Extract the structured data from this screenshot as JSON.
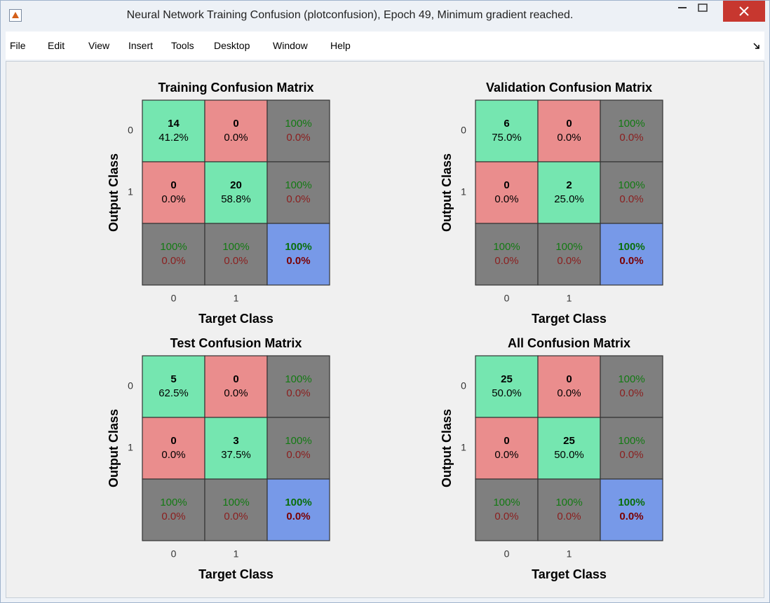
{
  "window": {
    "title": "Neural Network Training Confusion (plotconfusion), Epoch 49, Minimum gradient reached."
  },
  "menu": [
    "File",
    "Edit",
    "View",
    "Insert",
    "Tools",
    "Desktop",
    "Window",
    "Help"
  ],
  "matrices": [
    {
      "title": "Training Confusion Matrix",
      "xlabel": "Target Class",
      "ylabel": "Output Class",
      "classes": [
        "0",
        "1"
      ],
      "cells": [
        [
          {
            "top": "14",
            "bottom": "41.2%"
          },
          {
            "top": "0",
            "bottom": "0.0%"
          },
          {
            "top": "100%",
            "bottom": "0.0%"
          }
        ],
        [
          {
            "top": "0",
            "bottom": "0.0%"
          },
          {
            "top": "20",
            "bottom": "58.8%"
          },
          {
            "top": "100%",
            "bottom": "0.0%"
          }
        ],
        [
          {
            "top": "100%",
            "bottom": "0.0%"
          },
          {
            "top": "100%",
            "bottom": "0.0%"
          },
          {
            "top": "100%",
            "bottom": "0.0%"
          }
        ]
      ]
    },
    {
      "title": "Validation Confusion Matrix",
      "xlabel": "Target Class",
      "ylabel": "Output Class",
      "classes": [
        "0",
        "1"
      ],
      "cells": [
        [
          {
            "top": "6",
            "bottom": "75.0%"
          },
          {
            "top": "0",
            "bottom": "0.0%"
          },
          {
            "top": "100%",
            "bottom": "0.0%"
          }
        ],
        [
          {
            "top": "0",
            "bottom": "0.0%"
          },
          {
            "top": "2",
            "bottom": "25.0%"
          },
          {
            "top": "100%",
            "bottom": "0.0%"
          }
        ],
        [
          {
            "top": "100%",
            "bottom": "0.0%"
          },
          {
            "top": "100%",
            "bottom": "0.0%"
          },
          {
            "top": "100%",
            "bottom": "0.0%"
          }
        ]
      ]
    },
    {
      "title": "Test Confusion Matrix",
      "xlabel": "Target Class",
      "ylabel": "Output Class",
      "classes": [
        "0",
        "1"
      ],
      "cells": [
        [
          {
            "top": "5",
            "bottom": "62.5%"
          },
          {
            "top": "0",
            "bottom": "0.0%"
          },
          {
            "top": "100%",
            "bottom": "0.0%"
          }
        ],
        [
          {
            "top": "0",
            "bottom": "0.0%"
          },
          {
            "top": "3",
            "bottom": "37.5%"
          },
          {
            "top": "100%",
            "bottom": "0.0%"
          }
        ],
        [
          {
            "top": "100%",
            "bottom": "0.0%"
          },
          {
            "top": "100%",
            "bottom": "0.0%"
          },
          {
            "top": "100%",
            "bottom": "0.0%"
          }
        ]
      ]
    },
    {
      "title": "All Confusion Matrix",
      "xlabel": "Target Class",
      "ylabel": "Output Class",
      "classes": [
        "0",
        "1"
      ],
      "cells": [
        [
          {
            "top": "25",
            "bottom": "50.0%"
          },
          {
            "top": "0",
            "bottom": "0.0%"
          },
          {
            "top": "100%",
            "bottom": "0.0%"
          }
        ],
        [
          {
            "top": "0",
            "bottom": "0.0%"
          },
          {
            "top": "25",
            "bottom": "50.0%"
          },
          {
            "top": "100%",
            "bottom": "0.0%"
          }
        ],
        [
          {
            "top": "100%",
            "bottom": "0.0%"
          },
          {
            "top": "100%",
            "bottom": "0.0%"
          },
          {
            "top": "100%",
            "bottom": "0.0%"
          }
        ]
      ]
    }
  ]
}
